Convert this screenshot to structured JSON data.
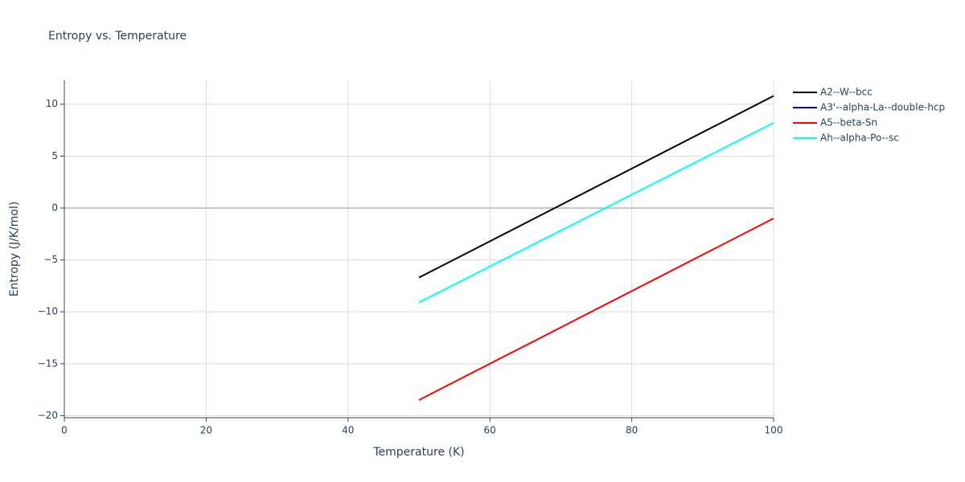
{
  "chart_data": {
    "type": "line",
    "title": "Entropy vs. Temperature",
    "x_label": "Temperature (K)",
    "y_label": "Entropy (J/K/mol)",
    "x": [
      50,
      100
    ],
    "series": [
      {
        "name": "A2--W--bcc",
        "color": "#000000",
        "values": [
          -6.7,
          10.8
        ]
      },
      {
        "name": "A3'--alpha-La--double-hcp",
        "color": "#0000ff",
        "values": [
          null,
          null
        ]
      },
      {
        "name": "A5--beta-Sn",
        "color": "#ff0000",
        "values": [
          -18.5,
          -1.0
        ]
      },
      {
        "name": "Ah--alpha-Po--sc",
        "color": "#00ffff",
        "values": [
          -9.1,
          8.2
        ]
      }
    ],
    "xlim": [
      0,
      100
    ],
    "xticks": [
      0,
      20,
      40,
      60,
      80,
      100
    ],
    "ylim": [
      -20.2,
      12.3
    ],
    "yticks": [
      {
        "value": -20,
        "label": "−20"
      },
      {
        "value": -15,
        "label": "−15"
      },
      {
        "value": -10,
        "label": "−10"
      },
      {
        "value": -5,
        "label": "−5"
      },
      0,
      5,
      10
    ],
    "grid": true,
    "legend": "right"
  }
}
